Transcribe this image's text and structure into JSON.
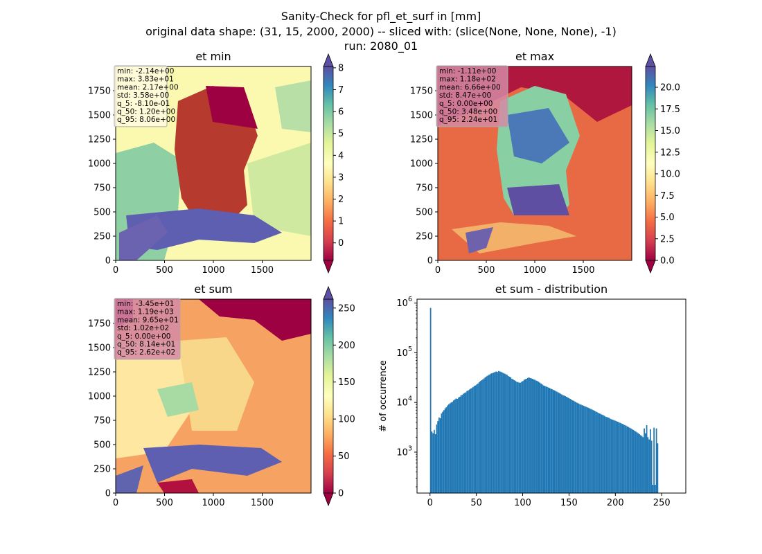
{
  "figure": {
    "title_lines": [
      "Sanity-Check for pfl_et_surf in [mm]",
      "original data shape: (31, 15, 2000, 2000) -- sliced with: (slice(None, None, None), -1)",
      "run: 2080_01"
    ]
  },
  "chart_data": [
    {
      "type": "heatmap",
      "title": "et min",
      "colormap": "Spectral",
      "x_ticks": [
        0,
        500,
        1000,
        1500
      ],
      "y_ticks": [
        0,
        250,
        500,
        750,
        1000,
        1250,
        1500,
        1750
      ],
      "xlim": [
        0,
        2000
      ],
      "ylim": [
        0,
        2000
      ],
      "colorbar": {
        "ticks": [
          0,
          1,
          2,
          3,
          4,
          5,
          6,
          7,
          8
        ],
        "range": [
          -0.8,
          8.06
        ],
        "extend": "both"
      },
      "stats_box_color": "#fffbe0",
      "stats": [
        "min: -2.14e+00",
        "max: 3.83e+01",
        "mean: 2.17e+00",
        "std: 3.58e+00",
        "q_5: -8.10e-01",
        "q_50: 1.20e+00",
        "q_95: 8.06e+00"
      ]
    },
    {
      "type": "heatmap",
      "title": "et max",
      "colormap": "Spectral",
      "x_ticks": [
        0,
        500,
        1000,
        1500
      ],
      "y_ticks": [
        0,
        250,
        500,
        750,
        1000,
        1250,
        1500,
        1750
      ],
      "xlim": [
        0,
        2000
      ],
      "ylim": [
        0,
        2000
      ],
      "colorbar": {
        "ticks": [
          "0.0",
          "2.5",
          "5.0",
          "7.5",
          "10.0",
          "12.5",
          "15.0",
          "17.5",
          "20.0"
        ],
        "range": [
          0,
          22.4
        ],
        "extend": "both"
      },
      "stats_box_color": "#d58aa4",
      "stats": [
        "min: -1.11e+00",
        "max: 1.18e+02",
        "mean: 6.66e+00",
        "std: 8.47e+00",
        "q_5: 0.00e+00",
        "q_50: 3.48e+00",
        "q_95: 2.24e+01"
      ]
    },
    {
      "type": "heatmap",
      "title": "et sum",
      "colormap": "Spectral",
      "x_ticks": [
        0,
        500,
        1000,
        1500
      ],
      "y_ticks": [
        0,
        250,
        500,
        750,
        1000,
        1250,
        1500,
        1750
      ],
      "xlim": [
        0,
        2000
      ],
      "ylim": [
        0,
        2000
      ],
      "colorbar": {
        "ticks": [
          0,
          50,
          100,
          150,
          200,
          250
        ],
        "range": [
          0,
          262
        ],
        "extend": "both"
      },
      "stats_box_color": "#d58aa4",
      "stats": [
        "min: -3.45e+01",
        "max: 1.19e+03",
        "mean: 9.65e+01",
        "std: 1.02e+02",
        "q_5: 0.00e+00",
        "q_50: 8.14e+01",
        "q_95: 2.62e+02"
      ]
    },
    {
      "type": "bar",
      "title": "et sum - distribution",
      "ylabel": "# of occurrence",
      "y_scale": "log",
      "ylim": [
        150,
        1200000
      ],
      "xlim": [
        -14,
        276
      ],
      "x_ticks": [
        0,
        50,
        100,
        150,
        200,
        250
      ],
      "y_ticks": [
        {
          "value": 1000,
          "label_base": "10",
          "label_exp": "3"
        },
        {
          "value": 10000,
          "label_base": "10",
          "label_exp": "4"
        },
        {
          "value": 100000,
          "label_base": "10",
          "label_exp": "5"
        },
        {
          "value": 1000000,
          "label_base": "10",
          "label_exp": "6"
        }
      ],
      "bar_color": "#1f77b4",
      "bin_start": 0,
      "bin_width": 1.31,
      "counts": [
        800000,
        2600,
        2400,
        2800,
        2300,
        3600,
        4200,
        5000,
        4800,
        6000,
        6500,
        7000,
        7600,
        8000,
        8700,
        9200,
        9600,
        10000,
        10300,
        11000,
        11500,
        12000,
        11800,
        12500,
        13000,
        13800,
        14200,
        15000,
        15500,
        16000,
        17000,
        17500,
        18200,
        19000,
        19500,
        20500,
        21500,
        22000,
        23000,
        24000,
        25500,
        27000,
        28000,
        29000,
        30500,
        32000,
        33500,
        34500,
        36000,
        37000,
        38500,
        39000,
        40000,
        41000,
        42000,
        41000,
        43000,
        42000,
        41500,
        40000,
        39000,
        38000,
        37000,
        36000,
        34000,
        33000,
        32000,
        30000,
        29000,
        28000,
        27000,
        26000,
        25500,
        25000,
        25000,
        26000,
        27000,
        28500,
        29500,
        30000,
        31000,
        32000,
        31000,
        30500,
        30000,
        29000,
        28500,
        27500,
        27000,
        26000,
        25000,
        24000,
        23000,
        22000,
        21500,
        21000,
        20500,
        20000,
        19500,
        19000,
        18500,
        18000,
        17500,
        17000,
        16500,
        16000,
        15500,
        15000,
        14500,
        14000,
        13800,
        13400,
        13000,
        12600,
        12200,
        11800,
        11400,
        11000,
        10800,
        10400,
        10000,
        9800,
        9500,
        9200,
        9000,
        8800,
        8600,
        8400,
        8200,
        8000,
        7800,
        7600,
        7400,
        7200,
        7000,
        6800,
        6600,
        6400,
        6200,
        6000,
        5900,
        5700,
        5600,
        5400,
        5200,
        5100,
        5000,
        4900,
        4700,
        4600,
        4500,
        4400,
        4300,
        4200,
        4100,
        4000,
        3900,
        3800,
        3700,
        3600,
        3500,
        3400,
        3300,
        3200,
        3100,
        3000,
        2900,
        2800,
        2700,
        2600,
        2500,
        2400,
        2300,
        2200,
        2100,
        2000,
        3000,
        2400,
        3500,
        2000,
        1800,
        2900,
        1700,
        220,
        3100,
        220,
        3000,
        1500
      ]
    }
  ]
}
